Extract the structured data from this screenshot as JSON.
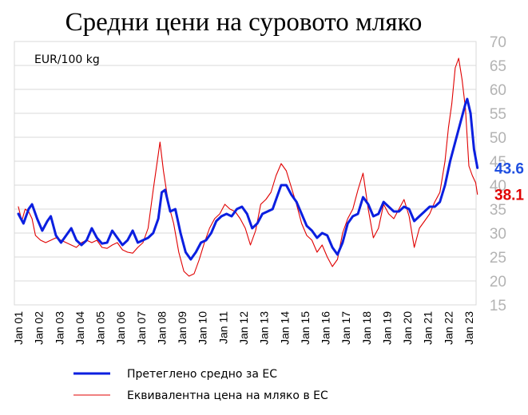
{
  "chart_data": {
    "type": "line",
    "title": "Средни цени на суровото мляко",
    "unit_label": "EUR/100 kg",
    "ylim": [
      15,
      70
    ],
    "y_ticks": [
      15,
      20,
      25,
      30,
      35,
      40,
      45,
      50,
      55,
      60,
      65,
      70
    ],
    "y_axis_side": "right",
    "grid": true,
    "x_ticks": [
      "Jan 01",
      "Jan 02",
      "Jan 03",
      "Jan 04",
      "Jan 05",
      "Jan 06",
      "Jan 07",
      "Jan 08",
      "Jan 09",
      "Jan 10",
      "Jan 11",
      "Jan 12",
      "Jan 13",
      "Jan 14",
      "Jan 15",
      "Jan 16",
      "Jan 17",
      "Jan 18",
      "Jan 19",
      "Jan 20",
      "Jan 21",
      "Jan 22",
      "Jan 23"
    ],
    "x_range": [
      "Jan 01",
      "Jun 23"
    ],
    "legend_position": "bottom",
    "series": [
      {
        "name": "Претеглено средно за ЕС",
        "color": "#0b1fe0",
        "end_label": "43.6",
        "end_label_color": "#1f4fe0",
        "points": [
          [
            "2001-01",
            34.0
          ],
          [
            "2001-04",
            32.0
          ],
          [
            "2001-07",
            35.0
          ],
          [
            "2001-09",
            36.0
          ],
          [
            "2001-12",
            33.0
          ],
          [
            "2002-03",
            30.5
          ],
          [
            "2002-06",
            32.5
          ],
          [
            "2002-08",
            33.5
          ],
          [
            "2002-11",
            29.5
          ],
          [
            "2003-02",
            28.0
          ],
          [
            "2003-05",
            29.5
          ],
          [
            "2003-08",
            31.0
          ],
          [
            "2003-11",
            28.5
          ],
          [
            "2004-02",
            27.5
          ],
          [
            "2004-05",
            28.5
          ],
          [
            "2004-08",
            31.0
          ],
          [
            "2004-11",
            29.0
          ],
          [
            "2005-02",
            27.8
          ],
          [
            "2005-05",
            28.0
          ],
          [
            "2005-08",
            30.5
          ],
          [
            "2005-11",
            29.0
          ],
          [
            "2006-02",
            27.5
          ],
          [
            "2006-05",
            28.5
          ],
          [
            "2006-08",
            30.5
          ],
          [
            "2006-11",
            28.0
          ],
          [
            "2007-02",
            28.5
          ],
          [
            "2007-05",
            29.0
          ],
          [
            "2007-08",
            30.0
          ],
          [
            "2007-11",
            33.0
          ],
          [
            "2008-01",
            38.5
          ],
          [
            "2008-03",
            39.0
          ],
          [
            "2008-06",
            34.5
          ],
          [
            "2008-09",
            35.0
          ],
          [
            "2008-12",
            30.0
          ],
          [
            "2009-03",
            26.0
          ],
          [
            "2009-06",
            24.5
          ],
          [
            "2009-09",
            26.0
          ],
          [
            "2009-12",
            28.0
          ],
          [
            "2010-03",
            28.5
          ],
          [
            "2010-06",
            30.0
          ],
          [
            "2010-09",
            32.5
          ],
          [
            "2010-12",
            33.5
          ],
          [
            "2011-03",
            34.0
          ],
          [
            "2011-06",
            33.5
          ],
          [
            "2011-09",
            35.0
          ],
          [
            "2011-12",
            35.5
          ],
          [
            "2012-03",
            34.0
          ],
          [
            "2012-06",
            31.0
          ],
          [
            "2012-09",
            32.0
          ],
          [
            "2012-12",
            34.0
          ],
          [
            "2013-03",
            34.5
          ],
          [
            "2013-06",
            35.0
          ],
          [
            "2013-09",
            38.0
          ],
          [
            "2013-11",
            40.0
          ],
          [
            "2014-02",
            40.0
          ],
          [
            "2014-05",
            38.0
          ],
          [
            "2014-08",
            36.5
          ],
          [
            "2014-11",
            34.0
          ],
          [
            "2015-02",
            31.5
          ],
          [
            "2015-05",
            30.5
          ],
          [
            "2015-08",
            29.0
          ],
          [
            "2015-11",
            30.0
          ],
          [
            "2016-02",
            29.5
          ],
          [
            "2016-05",
            27.0
          ],
          [
            "2016-08",
            25.5
          ],
          [
            "2016-11",
            28.0
          ],
          [
            "2017-02",
            32.0
          ],
          [
            "2017-05",
            33.5
          ],
          [
            "2017-08",
            34.0
          ],
          [
            "2017-11",
            37.5
          ],
          [
            "2018-02",
            36.0
          ],
          [
            "2018-05",
            33.5
          ],
          [
            "2018-08",
            34.0
          ],
          [
            "2018-11",
            36.5
          ],
          [
            "2019-02",
            35.5
          ],
          [
            "2019-05",
            34.5
          ],
          [
            "2019-08",
            34.5
          ],
          [
            "2019-11",
            35.5
          ],
          [
            "2020-02",
            35.0
          ],
          [
            "2020-05",
            32.5
          ],
          [
            "2020-08",
            33.5
          ],
          [
            "2020-11",
            34.5
          ],
          [
            "2021-02",
            35.5
          ],
          [
            "2021-05",
            35.5
          ],
          [
            "2021-08",
            36.5
          ],
          [
            "2021-11",
            40.0
          ],
          [
            "2022-02",
            45.0
          ],
          [
            "2022-05",
            49.0
          ],
          [
            "2022-08",
            53.0
          ],
          [
            "2022-11",
            57.0
          ],
          [
            "2022-12",
            58.0
          ],
          [
            "2023-02",
            55.0
          ],
          [
            "2023-04",
            47.5
          ],
          [
            "2023-06",
            43.6
          ]
        ]
      },
      {
        "name": "Еквивалентна цена на мляко в ЕС",
        "color": "#e00000",
        "end_label": "38.1",
        "end_label_color": "#e00000",
        "points": [
          [
            "2001-01",
            35.5
          ],
          [
            "2001-03",
            32.5
          ],
          [
            "2001-05",
            35.0
          ],
          [
            "2001-07",
            34.5
          ],
          [
            "2001-09",
            33.0
          ],
          [
            "2001-11",
            29.5
          ],
          [
            "2002-02",
            28.5
          ],
          [
            "2002-05",
            28.0
          ],
          [
            "2002-08",
            28.5
          ],
          [
            "2002-11",
            29.0
          ],
          [
            "2003-02",
            28.5
          ],
          [
            "2003-05",
            28.0
          ],
          [
            "2003-08",
            27.5
          ],
          [
            "2003-11",
            27.0
          ],
          [
            "2004-02",
            28.0
          ],
          [
            "2004-05",
            28.5
          ],
          [
            "2004-08",
            28.0
          ],
          [
            "2004-11",
            28.5
          ],
          [
            "2005-02",
            27.0
          ],
          [
            "2005-05",
            26.8
          ],
          [
            "2005-08",
            27.5
          ],
          [
            "2005-11",
            28.0
          ],
          [
            "2006-02",
            26.5
          ],
          [
            "2006-05",
            26.0
          ],
          [
            "2006-08",
            25.8
          ],
          [
            "2006-11",
            27.0
          ],
          [
            "2007-02",
            28.0
          ],
          [
            "2007-05",
            31.0
          ],
          [
            "2007-08",
            39.0
          ],
          [
            "2007-11",
            46.5
          ],
          [
            "2007-12",
            49.0
          ],
          [
            "2008-02",
            43.0
          ],
          [
            "2008-05",
            36.0
          ],
          [
            "2008-08",
            32.0
          ],
          [
            "2008-11",
            26.0
          ],
          [
            "2009-02",
            22.0
          ],
          [
            "2009-05",
            21.0
          ],
          [
            "2009-08",
            21.5
          ],
          [
            "2009-11",
            24.5
          ],
          [
            "2010-02",
            28.0
          ],
          [
            "2010-05",
            31.0
          ],
          [
            "2010-08",
            33.0
          ],
          [
            "2010-11",
            34.0
          ],
          [
            "2011-02",
            36.0
          ],
          [
            "2011-05",
            35.0
          ],
          [
            "2011-08",
            34.5
          ],
          [
            "2011-11",
            33.0
          ],
          [
            "2012-02",
            31.0
          ],
          [
            "2012-05",
            27.5
          ],
          [
            "2012-08",
            30.5
          ],
          [
            "2012-11",
            36.0
          ],
          [
            "2013-02",
            37.0
          ],
          [
            "2013-05",
            38.5
          ],
          [
            "2013-08",
            42.0
          ],
          [
            "2013-11",
            44.5
          ],
          [
            "2014-02",
            43.0
          ],
          [
            "2014-05",
            39.5
          ],
          [
            "2014-08",
            36.0
          ],
          [
            "2014-11",
            32.0
          ],
          [
            "2015-02",
            29.5
          ],
          [
            "2015-05",
            28.5
          ],
          [
            "2015-08",
            26.0
          ],
          [
            "2015-11",
            27.5
          ],
          [
            "2016-02",
            25.0
          ],
          [
            "2016-05",
            23.0
          ],
          [
            "2016-08",
            24.5
          ],
          [
            "2016-11",
            30.0
          ],
          [
            "2017-02",
            33.0
          ],
          [
            "2017-05",
            35.0
          ],
          [
            "2017-08",
            39.0
          ],
          [
            "2017-11",
            42.5
          ],
          [
            "2018-02",
            35.0
          ],
          [
            "2018-05",
            29.0
          ],
          [
            "2018-08",
            31.0
          ],
          [
            "2018-11",
            36.0
          ],
          [
            "2019-02",
            34.0
          ],
          [
            "2019-05",
            33.0
          ],
          [
            "2019-08",
            35.0
          ],
          [
            "2019-11",
            37.0
          ],
          [
            "2020-02",
            33.5
          ],
          [
            "2020-05",
            27.0
          ],
          [
            "2020-08",
            31.0
          ],
          [
            "2020-11",
            32.5
          ],
          [
            "2021-02",
            34.0
          ],
          [
            "2021-05",
            36.5
          ],
          [
            "2021-08",
            38.5
          ],
          [
            "2021-11",
            45.0
          ],
          [
            "2022-01",
            52.0
          ],
          [
            "2022-03",
            57.0
          ],
          [
            "2022-05",
            64.5
          ],
          [
            "2022-07",
            66.5
          ],
          [
            "2022-09",
            62.0
          ],
          [
            "2022-11",
            56.0
          ],
          [
            "2023-01",
            44.0
          ],
          [
            "2023-03",
            42.0
          ],
          [
            "2023-05",
            40.5
          ],
          [
            "2023-06",
            38.1
          ]
        ]
      }
    ]
  }
}
